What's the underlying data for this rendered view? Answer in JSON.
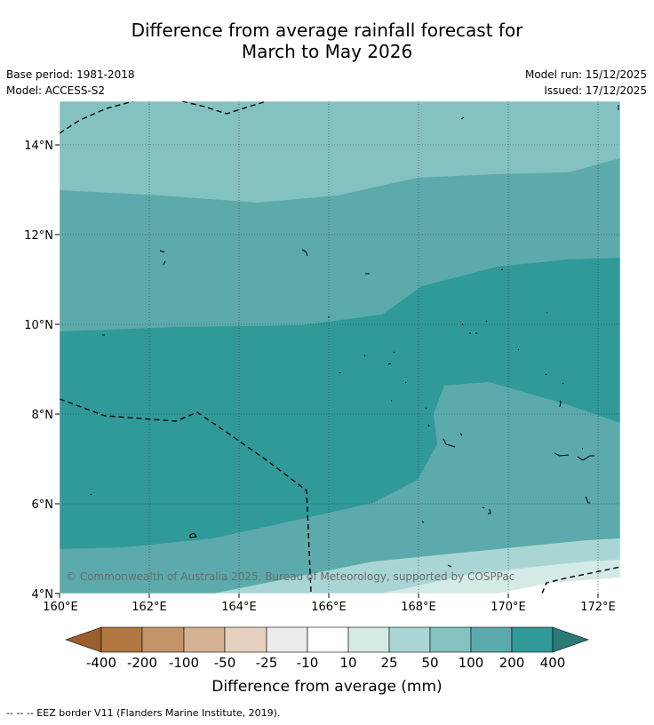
{
  "header": {
    "title_line1": "Difference from average rainfall forecast for",
    "title_line2": "March to May 2026",
    "base_period": "Base period: 1981-2018",
    "model": "Model: ACCESS-S2",
    "model_run": "Model run: 15/12/2025",
    "issued": "Issued: 17/12/2025"
  },
  "map": {
    "lon_ticks": [
      "160°E",
      "162°E",
      "164°E",
      "166°E",
      "168°E",
      "170°E",
      "172°E"
    ],
    "lat_ticks": [
      "4°N",
      "6°N",
      "8°N",
      "10°N",
      "12°N",
      "14°N"
    ],
    "copyright": "© Commonwealth of Australia 2025, Bureau of Meteorology, supported by COSPPac"
  },
  "legend": {
    "title": "Difference from average (mm)",
    "labels": [
      "-400",
      "-200",
      "-100",
      "-50",
      "-25",
      "-10",
      "10",
      "25",
      "50",
      "100",
      "200",
      "400"
    ],
    "colors": [
      "#9a5f2b",
      "#b07840",
      "#c29467",
      "#d4b292",
      "#e6d1c0",
      "#edebe7",
      "#ffffff",
      "#d4eae7",
      "#a9d6d4",
      "#84c1c1",
      "#5caaab",
      "#309a99",
      "#2a7a78"
    ]
  },
  "footnote": "--  --  -- EEZ border V11 (Flanders Marine Institute, 2019)."
}
